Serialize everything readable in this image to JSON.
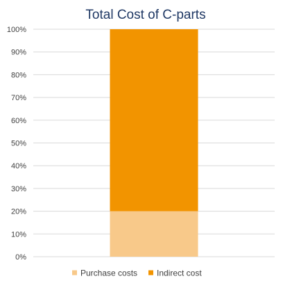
{
  "chart_data": {
    "type": "bar",
    "stacked": true,
    "title": "Total Cost of C-parts",
    "xlabel": "",
    "ylabel": "",
    "categories": [
      ""
    ],
    "series": [
      {
        "name": "Purchase costs",
        "values": [
          20
        ],
        "color": "#F8C98A"
      },
      {
        "name": "Indirect cost",
        "values": [
          80
        ],
        "color": "#F29400"
      }
    ],
    "ylim": [
      0,
      100
    ],
    "yticks": [
      0,
      10,
      20,
      30,
      40,
      50,
      60,
      70,
      80,
      90,
      100
    ],
    "ytick_labels": [
      "0%",
      "10%",
      "20%",
      "30%",
      "40%",
      "50%",
      "60%",
      "70%",
      "80%",
      "90%",
      "100%"
    ],
    "grid": true,
    "legend_position": "bottom"
  },
  "colors": {
    "title": "#1F3864",
    "axis_text": "#404040",
    "gridline": "#D9D9D9"
  }
}
